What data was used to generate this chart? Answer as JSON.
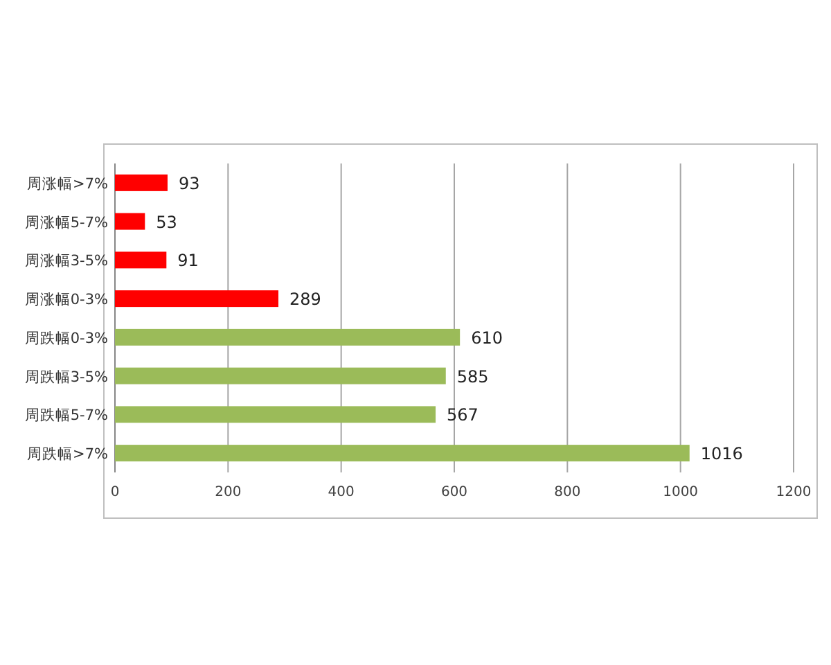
{
  "chart_data": {
    "type": "bar",
    "orientation": "horizontal",
    "categories": [
      "周涨幅>7%",
      "周涨幅5-7%",
      "周涨幅3-5%",
      "周涨幅0-3%",
      "周跌幅0-3%",
      "周跌幅3-5%",
      "周跌幅5-7%",
      "周跌幅>7%"
    ],
    "values": [
      93,
      53,
      91,
      289,
      610,
      585,
      567,
      1016
    ],
    "colors": [
      "#ff0000",
      "#ff0000",
      "#ff0000",
      "#ff0000",
      "#9bbb59",
      "#9bbb59",
      "#9bbb59",
      "#9bbb59"
    ],
    "xlim": [
      0,
      1200
    ],
    "xticks": [
      0,
      200,
      400,
      600,
      800,
      1000,
      1200
    ],
    "grid": "x",
    "data_labels": true
  }
}
